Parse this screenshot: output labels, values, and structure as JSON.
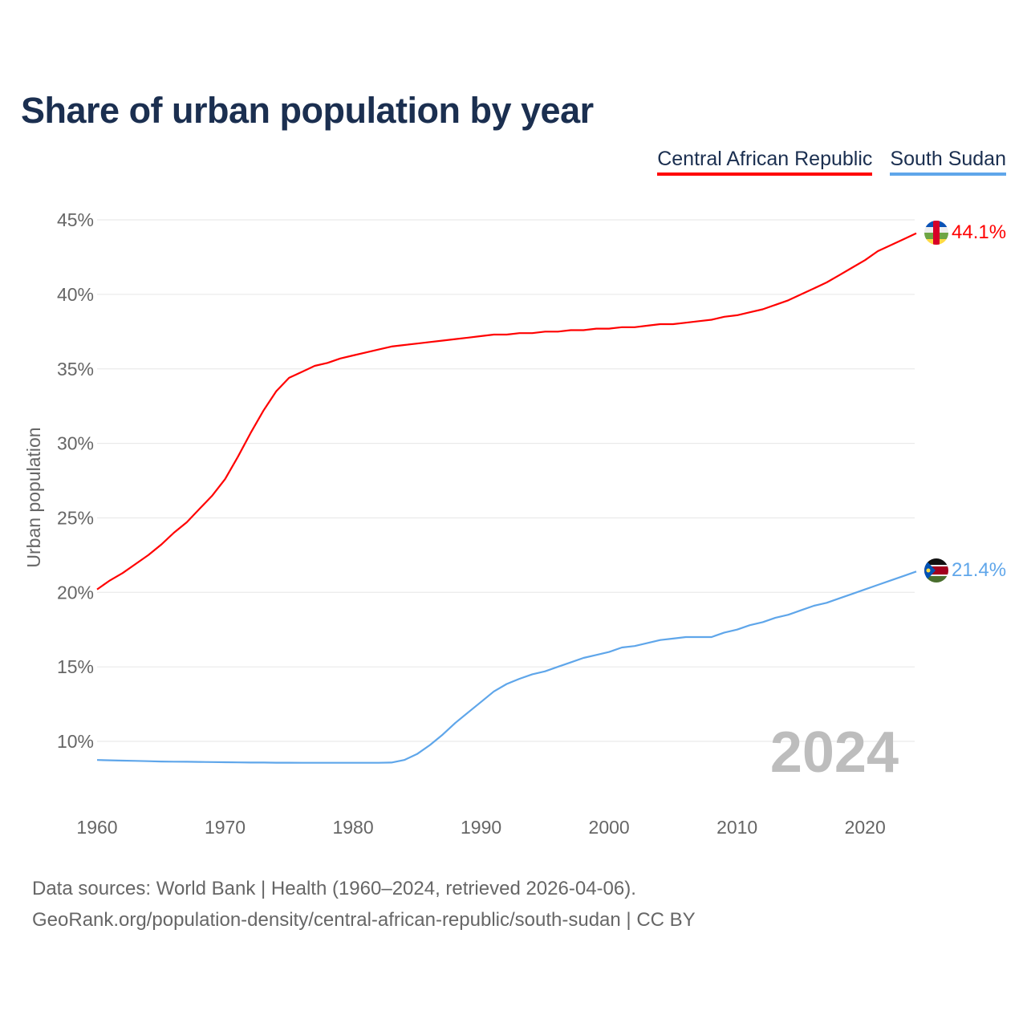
{
  "chart_data": {
    "type": "line",
    "title": "Share of urban population by year",
    "ylabel": "Urban population",
    "xlabel": "",
    "xlim": [
      1960,
      2024
    ],
    "ylim": [
      7,
      45.5
    ],
    "x_ticks": [
      1960,
      1970,
      1980,
      1990,
      2000,
      2010,
      2020
    ],
    "y_ticks": [
      10,
      15,
      20,
      25,
      30,
      35,
      40,
      45
    ],
    "y_tick_labels": [
      "10%",
      "15%",
      "20%",
      "25%",
      "30%",
      "35%",
      "40%",
      "45%"
    ],
    "x_tick_labels": [
      "1960",
      "1970",
      "1980",
      "1990",
      "2000",
      "2010",
      "2020"
    ],
    "grid": true,
    "legend_position": "top-right",
    "current_year": "2024",
    "x": [
      1960,
      1961,
      1962,
      1963,
      1964,
      1965,
      1966,
      1967,
      1968,
      1969,
      1970,
      1971,
      1972,
      1973,
      1974,
      1975,
      1976,
      1977,
      1978,
      1979,
      1980,
      1981,
      1982,
      1983,
      1984,
      1985,
      1986,
      1987,
      1988,
      1989,
      1990,
      1991,
      1992,
      1993,
      1994,
      1995,
      1996,
      1997,
      1998,
      1999,
      2000,
      2001,
      2002,
      2003,
      2004,
      2005,
      2006,
      2007,
      2008,
      2009,
      2010,
      2011,
      2012,
      2013,
      2014,
      2015,
      2016,
      2017,
      2018,
      2019,
      2020,
      2021,
      2022,
      2023,
      2024
    ],
    "series": [
      {
        "name": "Central African Republic",
        "color": "#ff0000",
        "end_label": "44.1%",
        "values": [
          20.2,
          20.8,
          21.3,
          21.9,
          22.5,
          23.2,
          24.0,
          24.7,
          25.6,
          26.5,
          27.6,
          29.1,
          30.7,
          32.2,
          33.5,
          34.4,
          34.8,
          35.2,
          35.4,
          35.7,
          35.9,
          36.1,
          36.3,
          36.5,
          36.6,
          36.7,
          36.8,
          36.9,
          37.0,
          37.1,
          37.2,
          37.3,
          37.3,
          37.4,
          37.4,
          37.5,
          37.5,
          37.6,
          37.6,
          37.7,
          37.7,
          37.8,
          37.8,
          37.9,
          38.0,
          38.0,
          38.1,
          38.2,
          38.3,
          38.5,
          38.6,
          38.8,
          39.0,
          39.3,
          39.6,
          40.0,
          40.4,
          40.8,
          41.3,
          41.8,
          42.3,
          42.9,
          43.3,
          43.7,
          44.1
        ]
      },
      {
        "name": "South Sudan",
        "color": "#5fa6ea",
        "end_label": "21.4%",
        "values": [
          8.75,
          8.73,
          8.71,
          8.69,
          8.67,
          8.65,
          8.64,
          8.63,
          8.62,
          8.61,
          8.6,
          8.59,
          8.58,
          8.58,
          8.57,
          8.57,
          8.56,
          8.56,
          8.56,
          8.56,
          8.56,
          8.56,
          8.56,
          8.58,
          8.75,
          9.15,
          9.75,
          10.45,
          11.25,
          11.95,
          12.65,
          13.35,
          13.85,
          14.2,
          14.5,
          14.7,
          15.0,
          15.3,
          15.6,
          15.8,
          16.0,
          16.3,
          16.4,
          16.6,
          16.8,
          16.9,
          17.0,
          17.0,
          17.0,
          17.3,
          17.5,
          17.8,
          18.0,
          18.3,
          18.5,
          18.8,
          19.1,
          19.3,
          19.6,
          19.9,
          20.2,
          20.5,
          20.8,
          21.1,
          21.4
        ]
      }
    ]
  },
  "footer": {
    "source_line": "Data sources: World Bank | Health (1960–2024, retrieved 2026-04-06).",
    "url_line": "GeoRank.org/population-density/central-african-republic/south-sudan | CC BY"
  }
}
